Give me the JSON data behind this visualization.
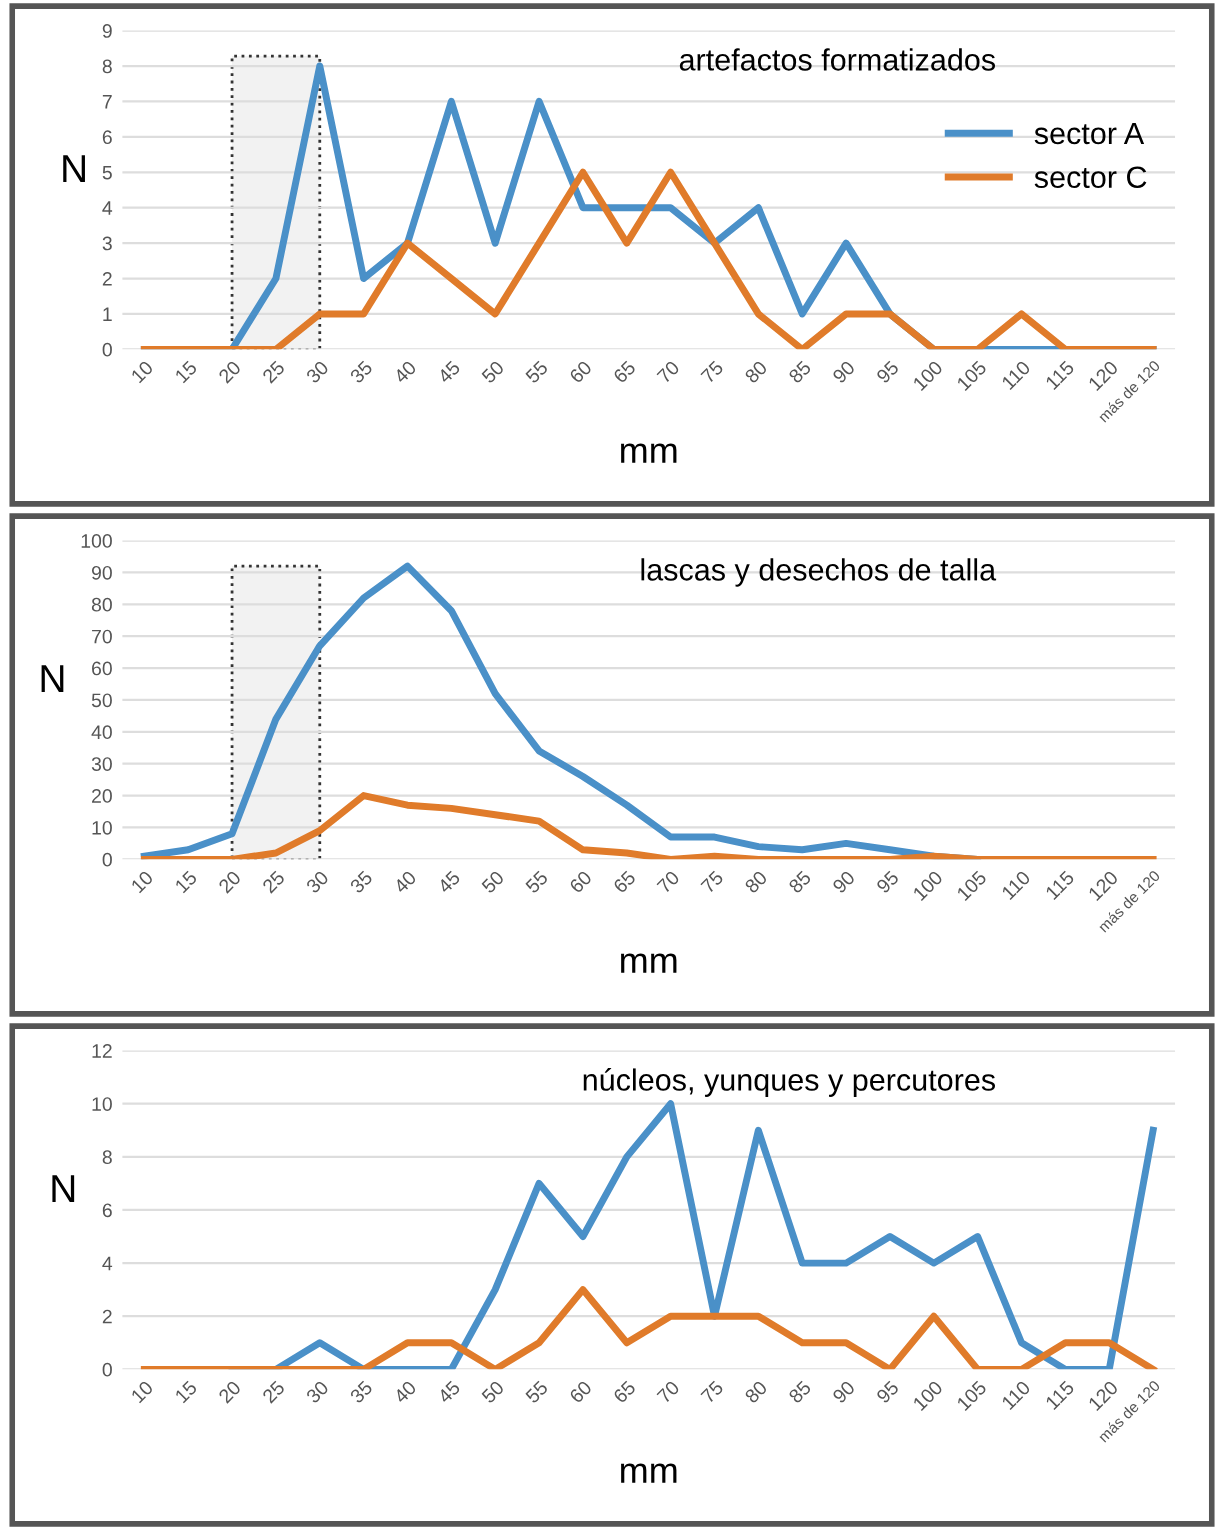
{
  "chart_data": [
    {
      "type": "line",
      "title": "artefactos formatizados",
      "xlabel": "mm",
      "ylabel": "N",
      "categories": [
        "10",
        "15",
        "20",
        "25",
        "30",
        "35",
        "40",
        "45",
        "50",
        "55",
        "60",
        "65",
        "70",
        "75",
        "80",
        "85",
        "90",
        "95",
        "100",
        "105",
        "110",
        "115",
        "120",
        "más de 120"
      ],
      "series": [
        {
          "name": "sector A",
          "color": "#4a90c8",
          "values": [
            0,
            0,
            0,
            2,
            8,
            2,
            3,
            7,
            3,
            7,
            4,
            4,
            4,
            3,
            4,
            1,
            3,
            1,
            0,
            0,
            0,
            0,
            0,
            0
          ]
        },
        {
          "name": "sector C",
          "color": "#e07b2a",
          "values": [
            0,
            0,
            0,
            0,
            1,
            1,
            3,
            2,
            1,
            3,
            5,
            3,
            5,
            3,
            1,
            0,
            1,
            1,
            0,
            0,
            1,
            0,
            0,
            0
          ]
        }
      ],
      "ylim": [
        0,
        9
      ],
      "yticks": [
        0,
        1,
        2,
        3,
        4,
        5,
        6,
        7,
        8,
        9
      ],
      "grid": "y",
      "legend": "top right",
      "marker": "none",
      "line_style": "solid",
      "bands": [
        {
          "axis": "x",
          "from": "20",
          "to": "30"
        }
      ]
    },
    {
      "type": "line",
      "title": "lascas y desechos de talla",
      "xlabel": "mm",
      "ylabel": "N",
      "categories": [
        "10",
        "15",
        "20",
        "25",
        "30",
        "35",
        "40",
        "45",
        "50",
        "55",
        "60",
        "65",
        "70",
        "75",
        "80",
        "85",
        "90",
        "95",
        "100",
        "105",
        "110",
        "115",
        "120",
        "más de 120"
      ],
      "series": [
        {
          "color": "#4a90c8",
          "values": [
            1,
            3,
            8,
            44,
            67,
            82,
            92,
            78,
            52,
            34,
            26,
            17,
            7,
            7,
            4,
            3,
            5,
            3,
            1,
            0,
            null,
            null,
            null,
            null
          ]
        },
        {
          "color": "#e07b2a",
          "values": [
            0,
            0,
            0,
            2,
            9,
            20,
            17,
            16,
            14,
            12,
            3,
            2,
            0,
            1,
            0,
            0,
            0,
            0,
            1,
            0,
            0,
            0,
            0,
            0
          ]
        }
      ],
      "ylim": [
        0,
        100
      ],
      "yticks": [
        0,
        10,
        20,
        30,
        40,
        50,
        60,
        70,
        80,
        90,
        100
      ],
      "grid": "y",
      "marker": "none",
      "line_style": "solid",
      "bands": [
        {
          "axis": "x",
          "from": "20",
          "to": "30"
        }
      ]
    },
    {
      "type": "line",
      "title": "núcleos, yunques y percutores",
      "xlabel": "mm",
      "ylabel": "N",
      "categories": [
        "10",
        "15",
        "20",
        "25",
        "30",
        "35",
        "40",
        "45",
        "50",
        "55",
        "60",
        "65",
        "70",
        "75",
        "80",
        "85",
        "90",
        "95",
        "100",
        "105",
        "110",
        "115",
        "120",
        "más de 120"
      ],
      "series": [
        {
          "color": "#4a90c8",
          "values": [
            null,
            null,
            0,
            0,
            1,
            0,
            0,
            0,
            3,
            7,
            5,
            8,
            10,
            2,
            9,
            4,
            4,
            5,
            4,
            5,
            1,
            0,
            0,
            9
          ]
        },
        {
          "color": "#e07b2a",
          "values": [
            0,
            0,
            0,
            0,
            0,
            0,
            1,
            1,
            0,
            1,
            3,
            1,
            2,
            2,
            2,
            1,
            1,
            0,
            2,
            0,
            0,
            1,
            1,
            0
          ]
        }
      ],
      "ylim": [
        0,
        12
      ],
      "yticks": [
        0,
        2,
        4,
        6,
        8,
        10,
        12
      ],
      "grid": "y",
      "marker": "none",
      "line_style": "solid"
    }
  ]
}
